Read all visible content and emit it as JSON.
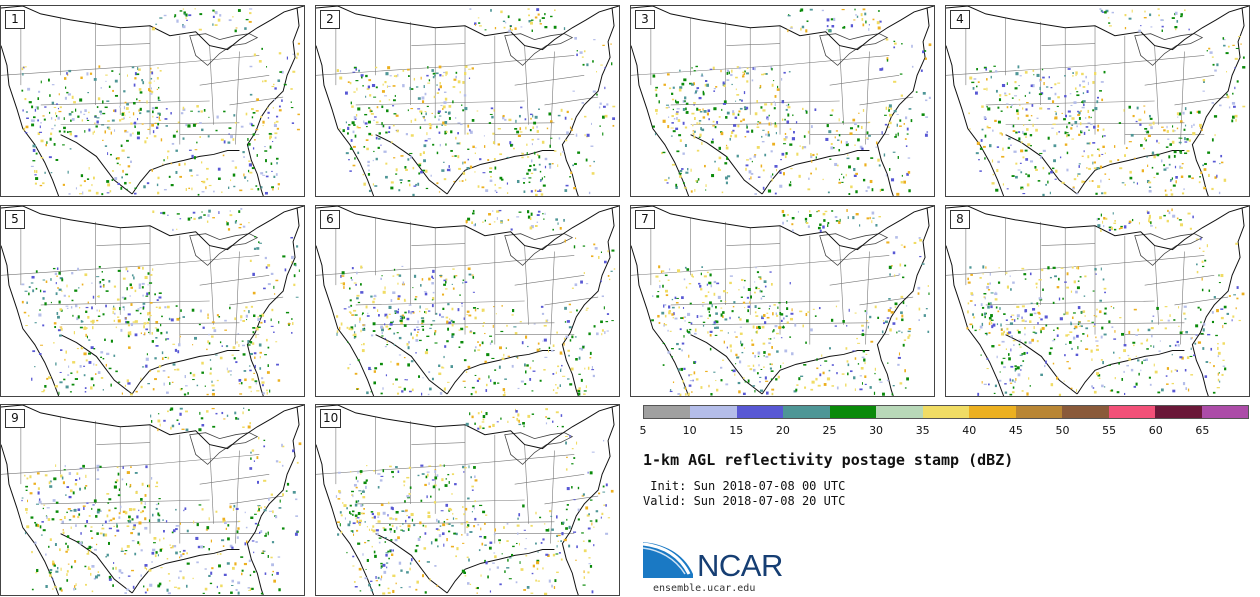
{
  "panels": [
    {
      "label": "1",
      "seed": 11
    },
    {
      "label": "2",
      "seed": 23
    },
    {
      "label": "3",
      "seed": 37
    },
    {
      "label": "4",
      "seed": 41
    },
    {
      "label": "5",
      "seed": 53
    },
    {
      "label": "6",
      "seed": 67
    },
    {
      "label": "7",
      "seed": 71
    },
    {
      "label": "8",
      "seed": 83
    },
    {
      "label": "9",
      "seed": 97
    },
    {
      "label": "10",
      "seed": 101
    }
  ],
  "colorbar": {
    "ticks": [
      "5",
      "10",
      "15",
      "20",
      "25",
      "30",
      "35",
      "40",
      "45",
      "50",
      "55",
      "60",
      "65"
    ],
    "colors": [
      "#a0a0a0",
      "#b4bde9",
      "#5858d4",
      "#4e9696",
      "#0a8a0a",
      "#b8d8b8",
      "#f0dc64",
      "#ecb020",
      "#b98634",
      "#8a5a3a",
      "#f25078",
      "#6a1838",
      "#ac4ca8"
    ]
  },
  "title": "1-km AGL reflectivity postage stamp (dBZ)",
  "init": " Init: Sun 2018-07-08 00 UTC",
  "valid": "Valid: Sun 2018-07-08 20 UTC",
  "logo": {
    "name": "NCAR",
    "url": "ensemble.ucar.edu",
    "colors": {
      "blue": "#1a79c4",
      "dark": "#163e73"
    }
  }
}
